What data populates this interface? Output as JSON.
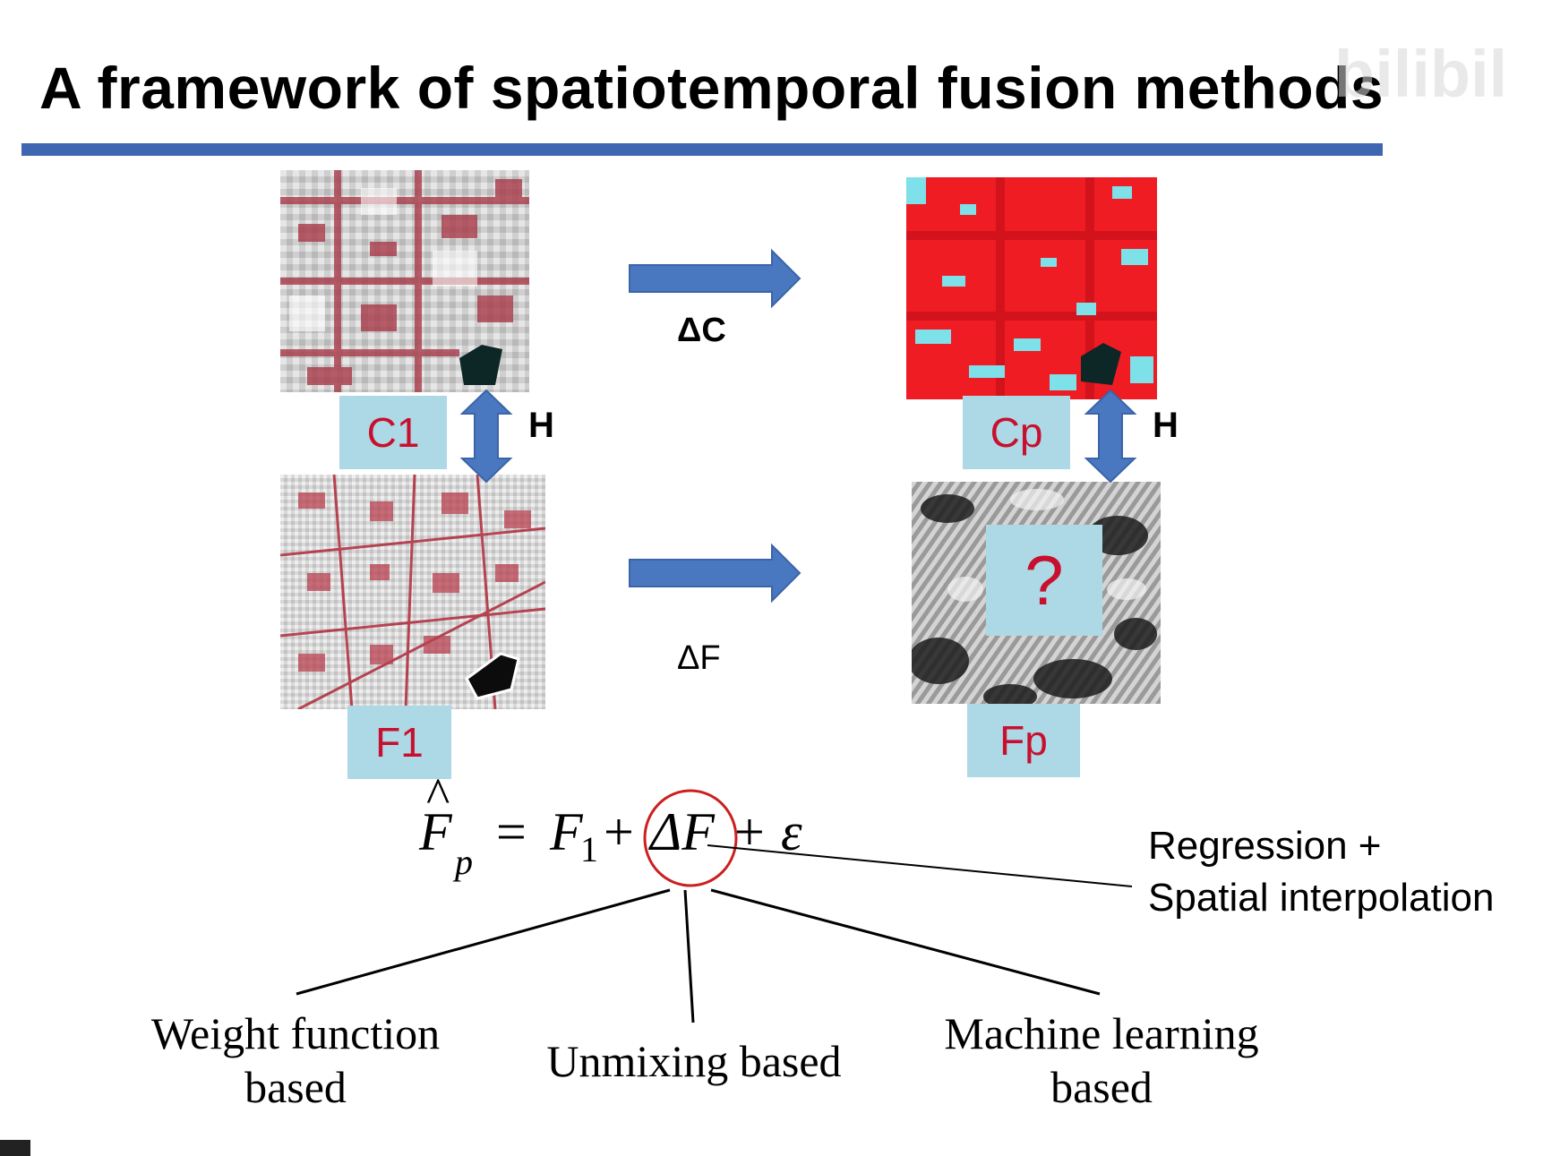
{
  "title": "A framework of spatiotemporal fusion methods",
  "watermark": "bilibili",
  "images": {
    "c1": {
      "label": "C1"
    },
    "cp": {
      "label": "Cp"
    },
    "f1": {
      "label": "F1"
    },
    "fp": {
      "label": "Fp",
      "placeholder": "?"
    }
  },
  "relations": {
    "h_left": "H",
    "h_right": "H",
    "delta_c": "ΔC",
    "delta_f": "ΔF"
  },
  "equation": {
    "lhs": "F",
    "lhs_hat": "^",
    "lhs_sub": "p",
    "equals": "=",
    "f1": "F",
    "f1_sub": "1",
    "plus1": "+",
    "delta_f": "ΔF",
    "plus2": "+",
    "epsilon": "ε"
  },
  "methods": {
    "weight": {
      "line1": "Weight function",
      "line2": "based"
    },
    "unmixing": {
      "line1": "Unmixing based"
    },
    "ml": {
      "line1": "Machine learning",
      "line2": "based"
    }
  },
  "side_note": {
    "line1": "Regression +",
    "line2": "Spatial interpolation"
  },
  "colors": {
    "title_rule": "#3f67b1",
    "arrow": "#4a78c0",
    "label_bg": "#add8e6",
    "label_text": "#c8102e",
    "circle": "#cc1f1f"
  }
}
